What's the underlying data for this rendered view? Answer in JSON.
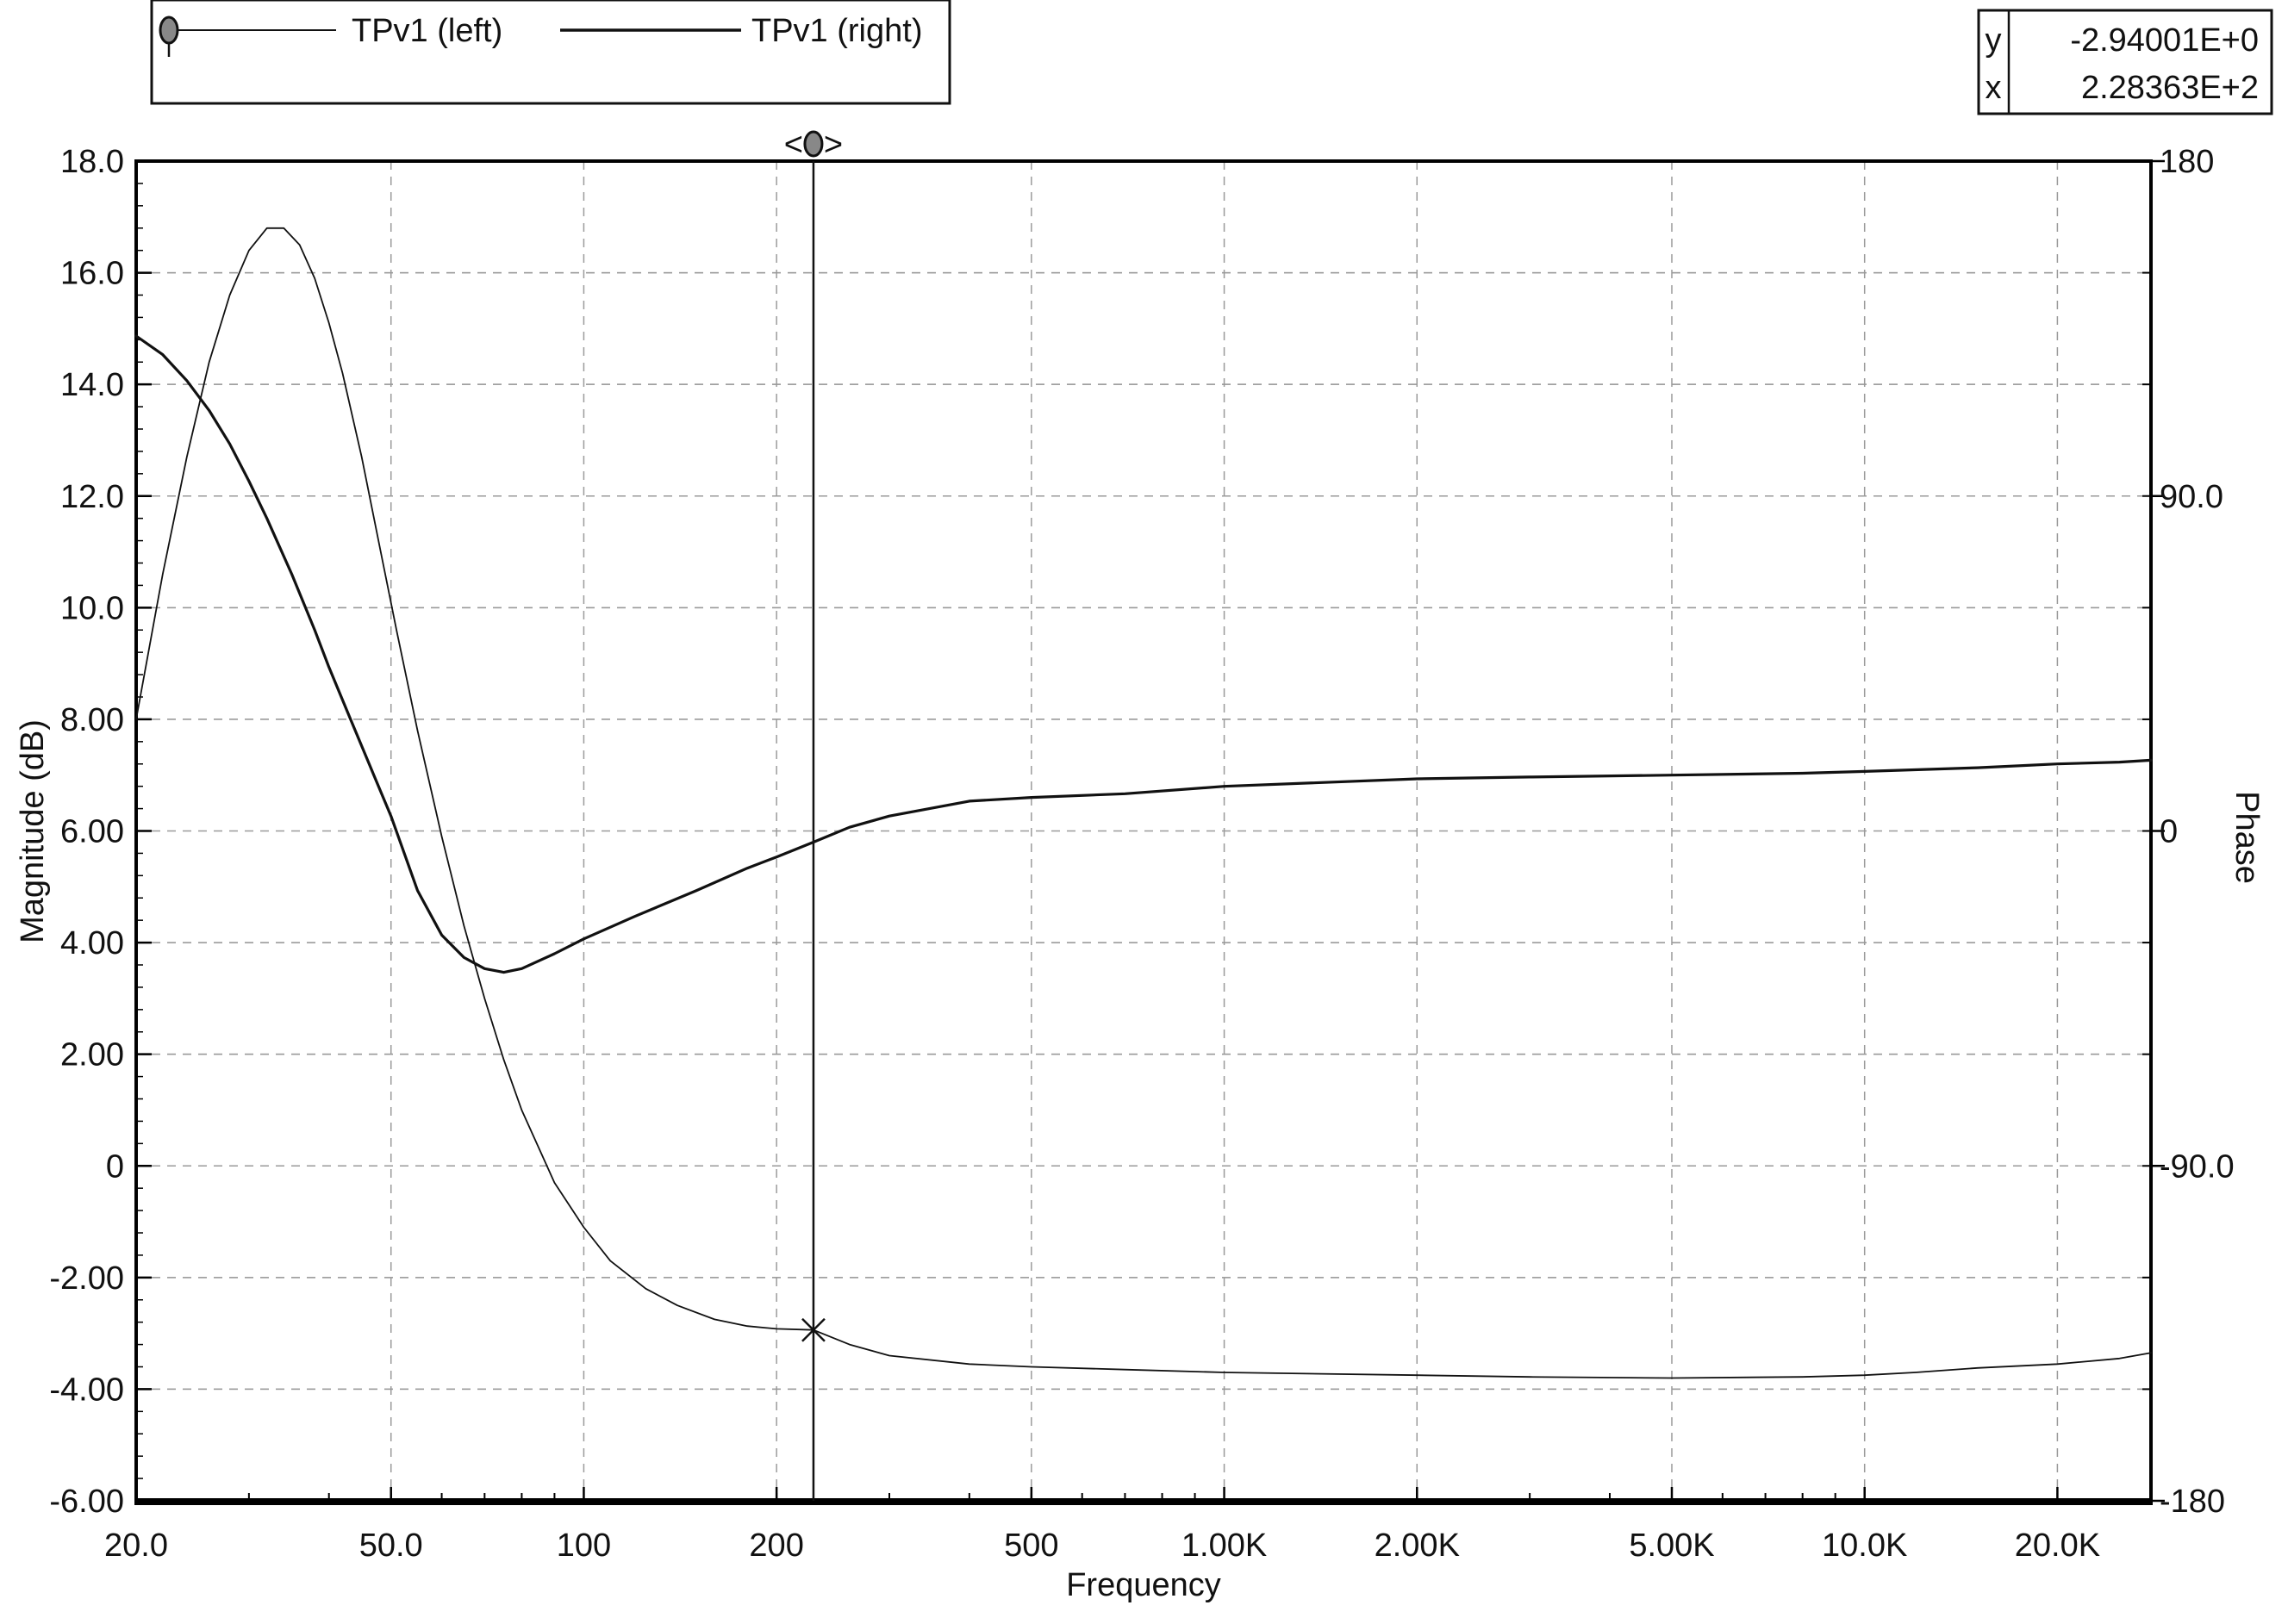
{
  "legend": {
    "entries": [
      {
        "label": "TPv1 (left)",
        "marker": "filled-ellipse-marker"
      },
      {
        "label": "TPv1 (right)",
        "marker": "none"
      }
    ]
  },
  "cursor_readout": {
    "y_label": "y",
    "y_value": "-2.94001E+0",
    "x_label": "x",
    "x_value": "2.28363E+2"
  },
  "cursor": {
    "x_data": 228.363,
    "y_data": -2.94001,
    "handle_left": "<",
    "handle_right": ">"
  },
  "colors": {
    "line": "#111111",
    "grid": "#9a9a9a",
    "frame": "#000000",
    "background": "#ffffff"
  },
  "chart_data": {
    "type": "line",
    "xlabel": "Frequency",
    "ylabel": "Magnitude  (dB)",
    "y2label": "Phase",
    "xscale": "log",
    "xlim": [
      20,
      28000
    ],
    "ylim": [
      -6,
      18
    ],
    "y2lim": [
      -180,
      180
    ],
    "grid": true,
    "legend_position": "top-left",
    "x_ticks": [
      {
        "value": 20,
        "label": "20.0"
      },
      {
        "value": 50,
        "label": "50.0"
      },
      {
        "value": 100,
        "label": "100"
      },
      {
        "value": 200,
        "label": "200"
      },
      {
        "value": 500,
        "label": "500"
      },
      {
        "value": 1000,
        "label": "1.00K"
      },
      {
        "value": 2000,
        "label": "2.00K"
      },
      {
        "value": 5000,
        "label": "5.00K"
      },
      {
        "value": 10000,
        "label": "10.0K"
      },
      {
        "value": 20000,
        "label": "20.0K"
      }
    ],
    "y_ticks": [
      {
        "value": 18,
        "label": "18.0"
      },
      {
        "value": 16,
        "label": "16.0"
      },
      {
        "value": 14,
        "label": "14.0"
      },
      {
        "value": 12,
        "label": "12.0"
      },
      {
        "value": 10,
        "label": "10.0"
      },
      {
        "value": 8,
        "label": "8.00"
      },
      {
        "value": 6,
        "label": "6.00"
      },
      {
        "value": 4,
        "label": "4.00"
      },
      {
        "value": 2,
        "label": "2.00"
      },
      {
        "value": 0,
        "label": "0"
      },
      {
        "value": -2,
        "label": "-2.00"
      },
      {
        "value": -4,
        "label": "-4.00"
      },
      {
        "value": -6,
        "label": "-6.00"
      }
    ],
    "y2_ticks": [
      {
        "value": 180,
        "label": "180"
      },
      {
        "value": 90,
        "label": "90.0"
      },
      {
        "value": 0,
        "label": "0"
      },
      {
        "value": -90,
        "label": "-90.0"
      },
      {
        "value": -180,
        "label": "-180"
      }
    ],
    "series": [
      {
        "name": "TPv1 (left)",
        "axis": "left",
        "x": [
          20,
          22,
          24,
          26,
          28,
          30,
          32,
          34,
          36,
          38,
          40,
          42,
          45,
          48,
          51,
          55,
          60,
          65,
          70,
          75,
          80,
          90,
          100,
          110,
          125,
          140,
          160,
          180,
          200,
          228.363,
          260,
          300,
          400,
          500,
          700,
          1000,
          2000,
          3000,
          5000,
          8000,
          10000,
          12000,
          15000,
          20000,
          25000,
          28000
        ],
        "y": [
          8.0,
          10.6,
          12.7,
          14.4,
          15.6,
          16.4,
          16.8,
          16.8,
          16.5,
          15.9,
          15.1,
          14.2,
          12.7,
          11.1,
          9.6,
          7.8,
          5.9,
          4.3,
          3.0,
          1.9,
          1.0,
          -0.3,
          -1.1,
          -1.7,
          -2.2,
          -2.5,
          -2.75,
          -2.87,
          -2.92,
          -2.94,
          -3.2,
          -3.4,
          -3.55,
          -3.6,
          -3.65,
          -3.7,
          -3.75,
          -3.78,
          -3.8,
          -3.78,
          -3.75,
          -3.7,
          -3.62,
          -3.55,
          -3.45,
          -3.35
        ]
      },
      {
        "name": "TPv1 (right)",
        "axis": "right",
        "x": [
          20,
          22,
          24,
          26,
          28,
          30,
          32,
          35,
          38,
          40,
          43,
          47,
          50,
          55,
          60,
          65,
          70,
          75,
          80,
          90,
          100,
          120,
          150,
          180,
          200,
          228.363,
          260,
          300,
          400,
          500,
          700,
          1000,
          2000,
          3000,
          5000,
          8000,
          10000,
          15000,
          20000,
          25000,
          28000
        ],
        "y": [
          133,
          128,
          121,
          113,
          104,
          94,
          84,
          69,
          54,
          44,
          31,
          15,
          4,
          -16,
          -28,
          -34,
          -37,
          -38,
          -37,
          -33,
          -29,
          -23,
          -16,
          -10,
          -7,
          -3,
          1,
          4,
          8,
          9,
          10,
          12,
          14,
          14.5,
          15,
          15.5,
          16,
          17,
          18,
          18.5,
          19
        ]
      }
    ]
  }
}
